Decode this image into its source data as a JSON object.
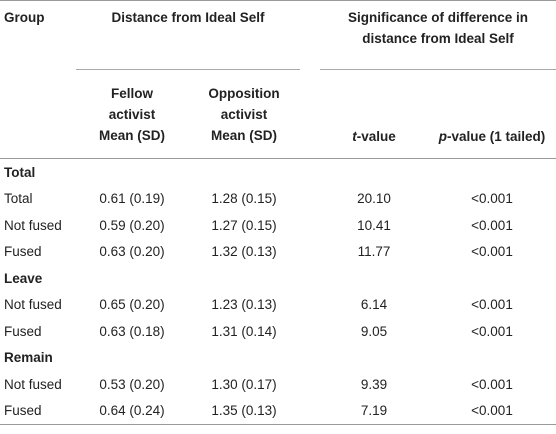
{
  "header": {
    "group": "Group",
    "distance": "Distance from Ideal Self",
    "significance": "Significance of difference in distance from Ideal Self",
    "fellow_line1": "Fellow",
    "fellow_line2": "activist",
    "fellow_line3": "Mean (SD)",
    "opposition_line1": "Opposition",
    "opposition_line2": "activist",
    "opposition_line3": "Mean (SD)",
    "t_italic": "t",
    "t_rest": "-value",
    "p_italic": "p",
    "p_rest": "-value (1 tailed)"
  },
  "sections": [
    {
      "name": "Total",
      "rows": [
        {
          "label": "Total",
          "fellow": "0.61 (0.19)",
          "opposition": "1.28 (0.15)",
          "t": "20.10",
          "p": "<0.001"
        },
        {
          "label": "Not fused",
          "fellow": "0.59 (0.20)",
          "opposition": "1.27 (0.15)",
          "t": "10.41",
          "p": "<0.001"
        },
        {
          "label": "Fused",
          "fellow": "0.63 (0.20)",
          "opposition": "1.32 (0.13)",
          "t": "11.77",
          "p": "<0.001"
        }
      ]
    },
    {
      "name": "Leave",
      "rows": [
        {
          "label": "Not fused",
          "fellow": "0.65 (0.20)",
          "opposition": "1.23 (0.13)",
          "t": "6.14",
          "p": "<0.001"
        },
        {
          "label": "Fused",
          "fellow": "0.63 (0.18)",
          "opposition": "1.31 (0.14)",
          "t": "9.05",
          "p": "<0.001"
        }
      ]
    },
    {
      "name": "Remain",
      "rows": [
        {
          "label": "Not fused",
          "fellow": "0.53 (0.20)",
          "opposition": "1.30 (0.17)",
          "t": "9.39",
          "p": "<0.001"
        },
        {
          "label": "Fused",
          "fellow": "0.64 (0.24)",
          "opposition": "1.35 (0.13)",
          "t": "7.19",
          "p": "<0.001"
        }
      ]
    }
  ]
}
